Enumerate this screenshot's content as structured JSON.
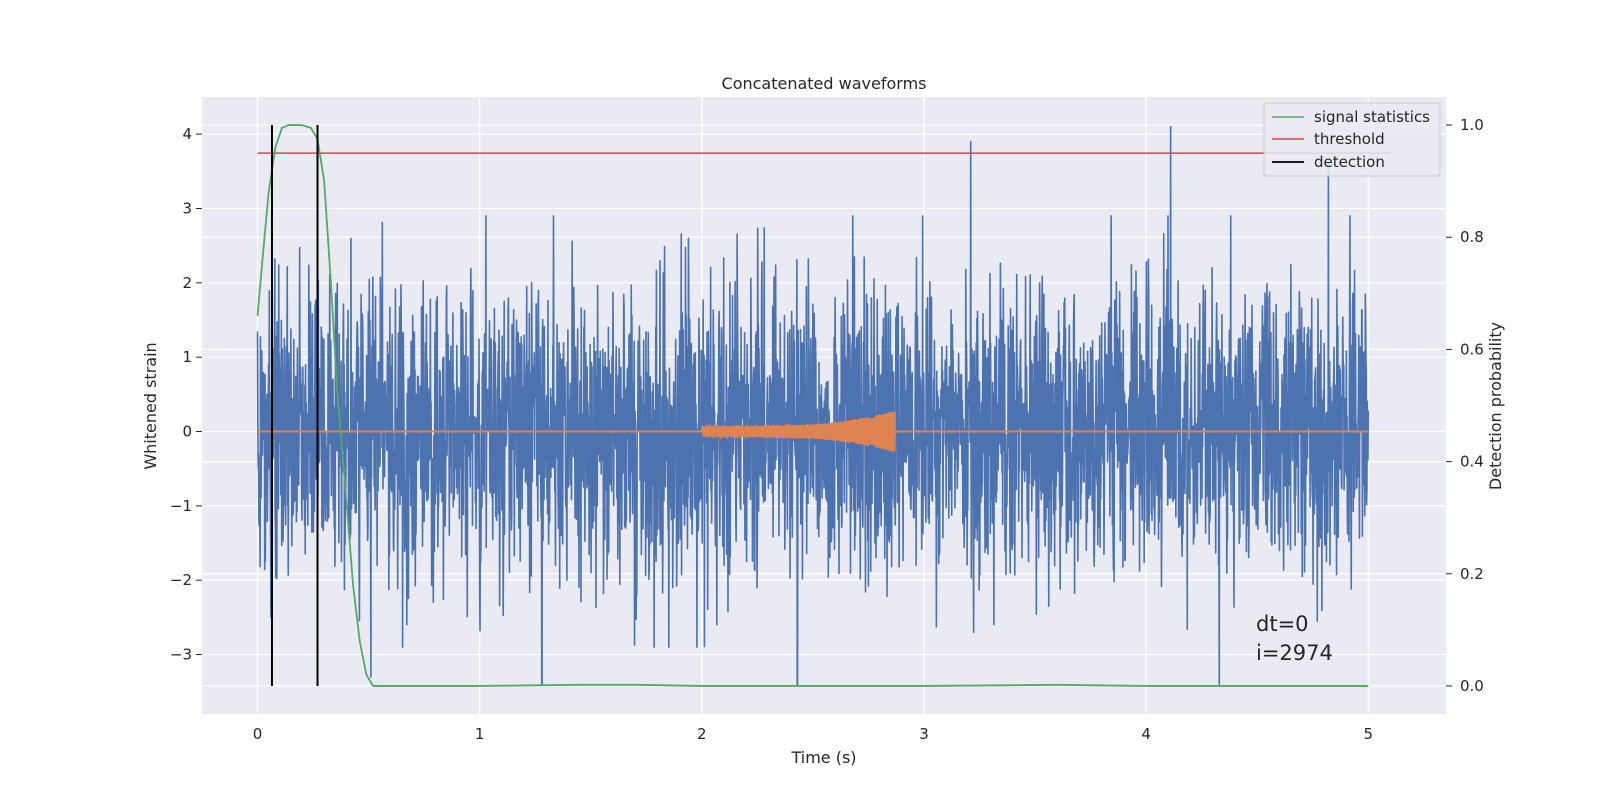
{
  "chart_data": {
    "type": "line",
    "title": "Concatenated waveforms",
    "xlabel": "Time (s)",
    "ylabel": "Whitened strain",
    "y2label": "Detection probability",
    "xlim": [
      -0.25,
      5.35
    ],
    "ylim": [
      -3.8,
      4.5
    ],
    "y2lim": [
      -0.05,
      1.05
    ],
    "grid": true,
    "x_ticks": [
      0,
      1,
      2,
      3,
      4,
      5
    ],
    "x_tick_labels": [
      "0",
      "1",
      "2",
      "3",
      "4",
      "5"
    ],
    "y_ticks": [
      -3,
      -2,
      -1,
      0,
      1,
      2,
      3,
      4
    ],
    "y_tick_labels": [
      "−3",
      "−2",
      "−1",
      "0",
      "1",
      "2",
      "3",
      "4"
    ],
    "y2_ticks": [
      0.0,
      0.2,
      0.4,
      0.6,
      0.8,
      1.0
    ],
    "y2_tick_labels": [
      "0.0",
      "0.2",
      "0.4",
      "0.6",
      "0.8",
      "1.0"
    ],
    "legend": {
      "location": "top-right",
      "entries": [
        {
          "label": "signal statistics",
          "color": "#55a868"
        },
        {
          "label": "threshold",
          "color": "#c44e52"
        },
        {
          "label": "detection",
          "color": "#000000"
        }
      ]
    },
    "series": [
      {
        "name": "whitened strain (noise)",
        "axis": "left",
        "color": "#4c72b0",
        "x_range": [
          0,
          5
        ],
        "typical_amplitude": 1.0,
        "spikes": [
          {
            "x": 3.21,
            "y": 3.9
          },
          {
            "x": 4.11,
            "y": 4.1
          },
          {
            "x": 4.82,
            "y": 3.6
          },
          {
            "x": 0.06,
            "y": -2.5
          },
          {
            "x": 0.51,
            "y": -3.3
          },
          {
            "x": 1.28,
            "y": -3.4
          },
          {
            "x": 2.43,
            "y": -3.4
          },
          {
            "x": 4.33,
            "y": -3.4
          }
        ]
      },
      {
        "name": "injected chirp",
        "axis": "left",
        "color": "#dd8452",
        "x_start": 2.0,
        "x_end": 2.87,
        "final_amplitude": 0.23
      },
      {
        "name": "signal statistics",
        "axis": "right",
        "color": "#55a868",
        "x": [
          0.0,
          0.02,
          0.05,
          0.08,
          0.11,
          0.14,
          0.2,
          0.24,
          0.27,
          0.3,
          0.33,
          0.36,
          0.4,
          0.43,
          0.46,
          0.49,
          0.52,
          0.6,
          1.0,
          1.45,
          1.7,
          2.0,
          2.5,
          3.0,
          3.6,
          4.0,
          4.5,
          5.0
        ],
        "values": [
          0.66,
          0.75,
          0.88,
          0.96,
          0.995,
          1.0,
          1.0,
          0.995,
          0.975,
          0.9,
          0.72,
          0.52,
          0.33,
          0.18,
          0.08,
          0.02,
          0.0,
          0.0,
          0.0,
          0.002,
          0.002,
          0.0,
          0.0,
          0.0,
          0.002,
          0.0,
          0.0,
          0.0
        ]
      },
      {
        "name": "threshold",
        "axis": "right",
        "color": "#c44e52",
        "x": [
          0,
          5.1
        ],
        "values": [
          0.95,
          0.95
        ]
      }
    ],
    "detections": [
      0.065,
      0.27
    ],
    "detection_range_y2": [
      0.0,
      1.0
    ],
    "annotations": [
      "dt=0",
      "i=2974"
    ]
  }
}
